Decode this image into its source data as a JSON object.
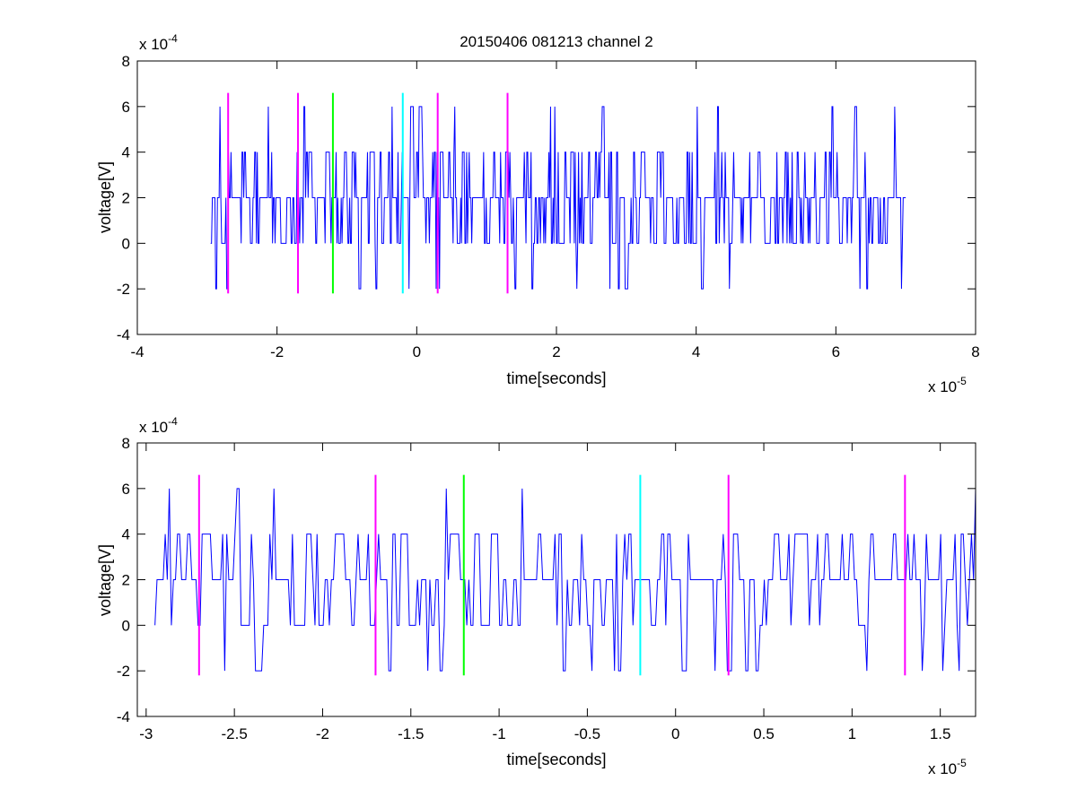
{
  "chart_data": [
    {
      "type": "line",
      "title": "20150406 081213 channel 2",
      "xlabel": "time[seconds]",
      "ylabel": "voltage[V]",
      "x_exponent_label": "x 10",
      "x_exponent": "-5",
      "y_exponent_label": "x 10",
      "y_exponent": "-4",
      "xlim": [
        -4,
        8
      ],
      "ylim": [
        -4,
        8
      ],
      "x_ticks": [
        "-4",
        "-2",
        "0",
        "2",
        "4",
        "6",
        "8"
      ],
      "y_ticks": [
        "-4",
        "-2",
        "0",
        "2",
        "4",
        "6",
        "8"
      ],
      "x_tick_values": [
        -4,
        -2,
        0,
        2,
        4,
        6,
        8
      ],
      "y_tick_values": [
        -4,
        -2,
        0,
        2,
        4,
        6,
        8
      ],
      "grid": false,
      "series": [
        {
          "color": "#0000ff",
          "x_range": [
            -2.95,
            7.0
          ],
          "levels": [
            -2,
            0,
            2,
            4,
            6
          ],
          "sample_count": 820
        }
      ],
      "markers": [
        {
          "x": -2.7,
          "color": "#ff00ff",
          "y_range": [
            -2.2,
            6.6
          ]
        },
        {
          "x": -1.7,
          "color": "#ff00ff",
          "y_range": [
            -2.2,
            6.6
          ]
        },
        {
          "x": -1.2,
          "color": "#00ff00",
          "y_range": [
            -2.2,
            6.6
          ]
        },
        {
          "x": -0.2,
          "color": "#00ffff",
          "y_range": [
            -2.2,
            6.6
          ]
        },
        {
          "x": 0.3,
          "color": "#ff00ff",
          "y_range": [
            -2.2,
            6.6
          ]
        },
        {
          "x": 1.3,
          "color": "#ff00ff",
          "y_range": [
            -2.2,
            6.6
          ]
        }
      ]
    },
    {
      "type": "line",
      "title": "",
      "xlabel": "time[seconds]",
      "ylabel": "voltage[V]",
      "x_exponent_label": "x 10",
      "x_exponent": "-5",
      "y_exponent_label": "x 10",
      "y_exponent": "-4",
      "xlim": [
        -3.05,
        1.7
      ],
      "ylim": [
        -4,
        8
      ],
      "x_ticks": [
        "-3",
        "-2.5",
        "-2",
        "-1.5",
        "-1",
        "-0.5",
        "0",
        "0.5",
        "1",
        "1.5"
      ],
      "y_ticks": [
        "-4",
        "-2",
        "0",
        "2",
        "4",
        "6",
        "8"
      ],
      "x_tick_values": [
        -3,
        -2.5,
        -2,
        -1.5,
        -1,
        -0.5,
        0,
        0.5,
        1,
        1.5
      ],
      "y_tick_values": [
        -4,
        -2,
        0,
        2,
        4,
        6,
        8
      ],
      "grid": false,
      "series": [
        {
          "color": "#0000ff",
          "x_range": [
            -2.95,
            1.7
          ],
          "levels": [
            -2,
            0,
            2,
            4,
            6
          ],
          "sample_count": 400
        }
      ],
      "markers": [
        {
          "x": -2.7,
          "color": "#ff00ff",
          "y_range": [
            -2.2,
            6.6
          ]
        },
        {
          "x": -1.7,
          "color": "#ff00ff",
          "y_range": [
            -2.2,
            6.6
          ]
        },
        {
          "x": -1.2,
          "color": "#00ff00",
          "y_range": [
            -2.2,
            6.6
          ]
        },
        {
          "x": -0.2,
          "color": "#00ffff",
          "y_range": [
            -2.2,
            6.6
          ]
        },
        {
          "x": 0.3,
          "color": "#ff00ff",
          "y_range": [
            -2.2,
            6.6
          ]
        },
        {
          "x": 1.3,
          "color": "#ff00ff",
          "y_range": [
            -2.2,
            6.6
          ]
        }
      ]
    }
  ]
}
